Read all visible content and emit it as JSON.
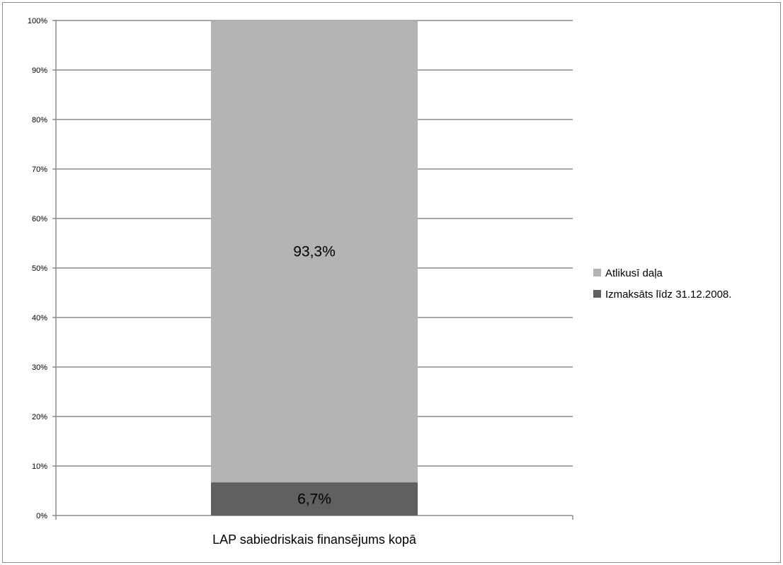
{
  "chart_data": {
    "type": "bar",
    "stacked": true,
    "title": "",
    "xlabel": "",
    "ylabel": "",
    "ylim": [
      0,
      100
    ],
    "y_ticks": [
      "0%",
      "10%",
      "20%",
      "30%",
      "40%",
      "50%",
      "60%",
      "70%",
      "80%",
      "90%",
      "100%"
    ],
    "categories": [
      "LAP sabiedriskais finansējums kopā"
    ],
    "grid": true,
    "legend_position": "right",
    "series": [
      {
        "name": "Izmaksāts līdz 31.12.2008.",
        "values": [
          6.7
        ],
        "label": "6,7%",
        "color": "#606060"
      },
      {
        "name": "Atlikusī daļa",
        "values": [
          93.3
        ],
        "label": "93,3%",
        "color": "#b3b3b3"
      }
    ],
    "legend_order": [
      "Atlikusī daļa",
      "Izmaksāts līdz 31.12.2008."
    ]
  }
}
